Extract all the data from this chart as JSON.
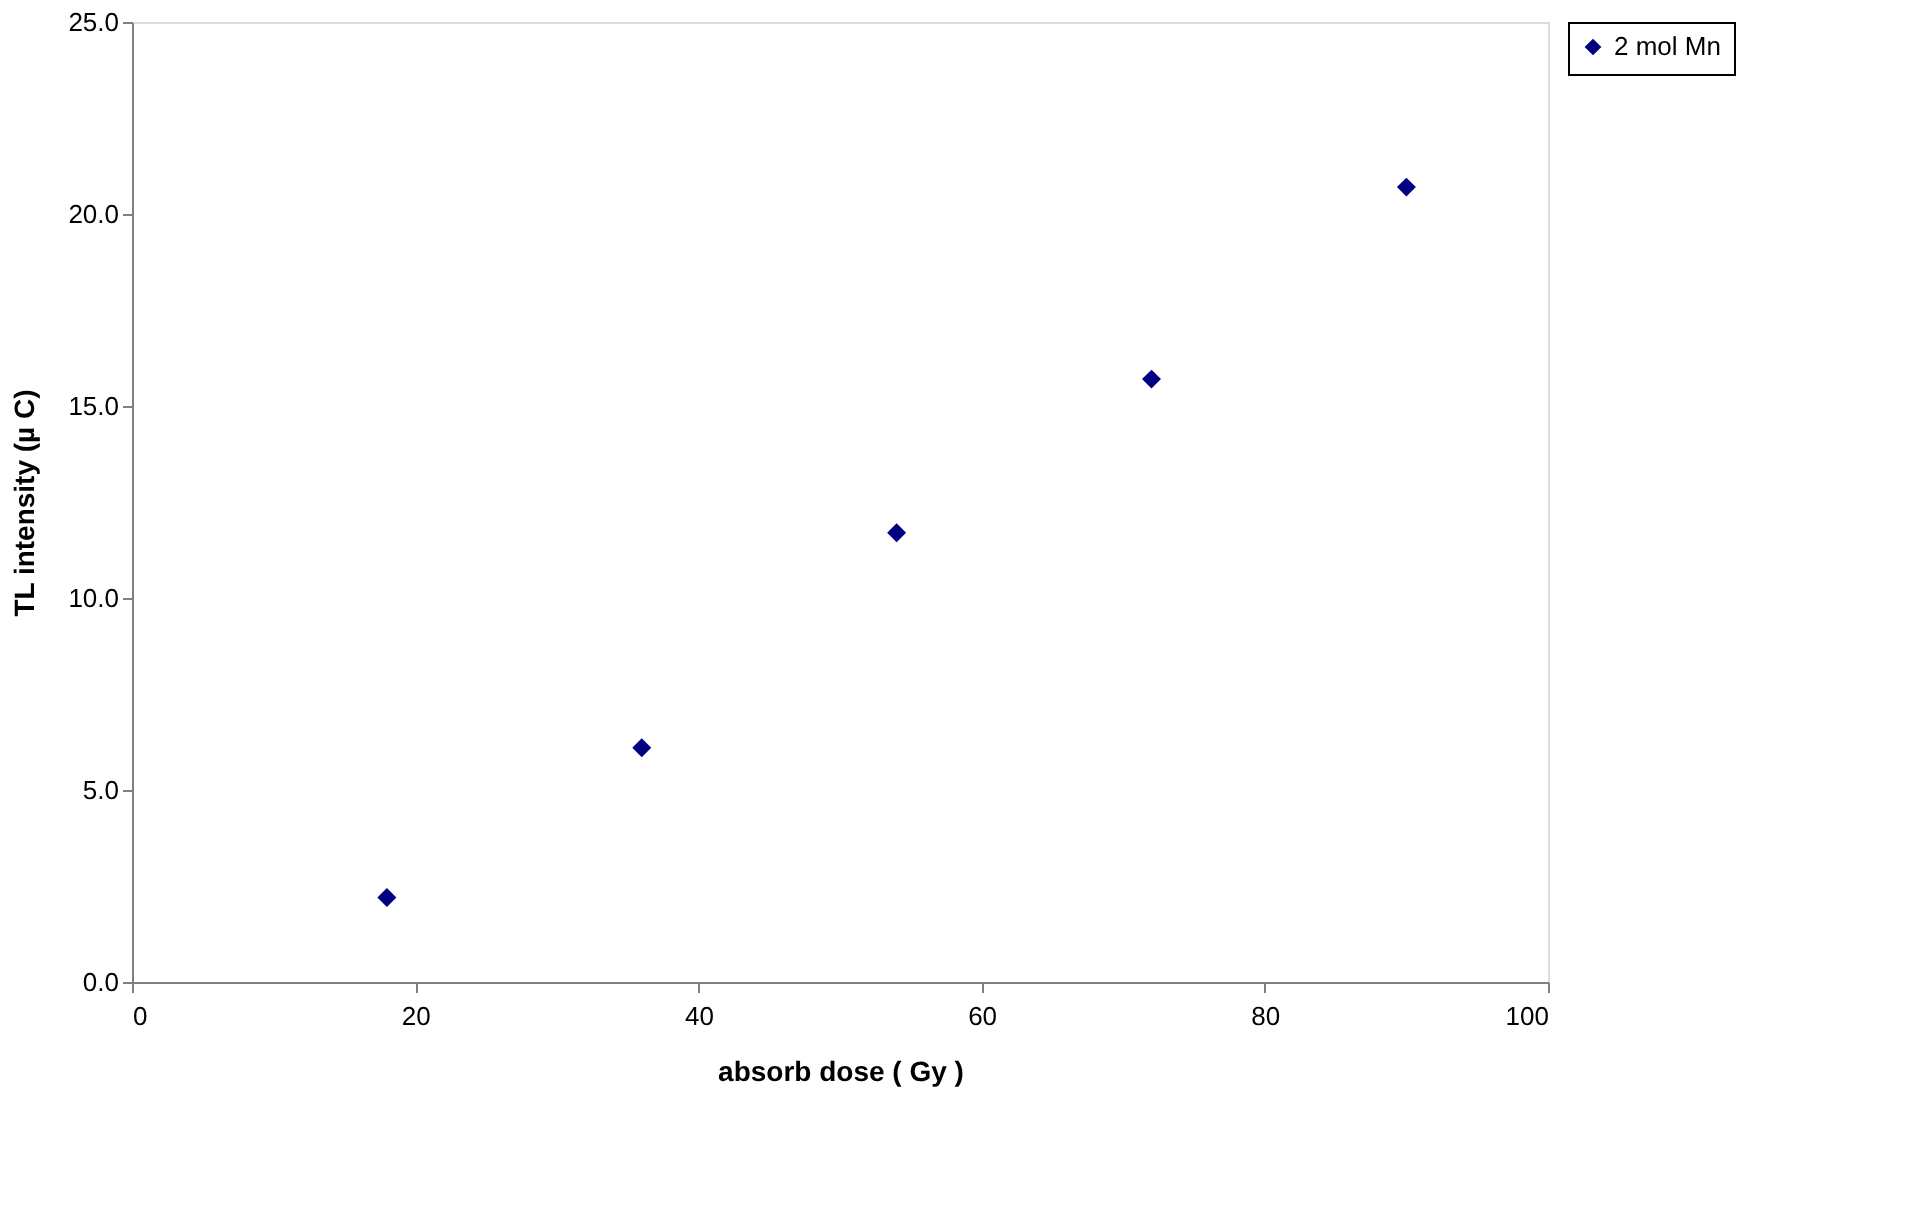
{
  "chart_data": {
    "type": "scatter",
    "xlabel": "absorb dose ( Gy )",
    "ylabel": "TL intensity (µ C)",
    "x": [
      18,
      36,
      54,
      72,
      90
    ],
    "series": [
      {
        "name": "2 mol Mn",
        "color": "#000080",
        "values": [
          2.2,
          6.1,
          11.7,
          15.7,
          20.7
        ]
      }
    ],
    "xlim": [
      0,
      100
    ],
    "xticks": [
      0,
      20,
      40,
      60,
      80,
      100
    ],
    "ylim": [
      0,
      25
    ],
    "yticks": [
      {
        "value": 0,
        "label": "0.0"
      },
      {
        "value": 5,
        "label": "5.0"
      },
      {
        "value": 10,
        "label": "10.0"
      },
      {
        "value": 15,
        "label": "15.0"
      },
      {
        "value": 20,
        "label": "20.0"
      },
      {
        "value": 25,
        "label": "25.0"
      }
    ],
    "marker": "diamond",
    "legend": "right",
    "grid": false
  }
}
